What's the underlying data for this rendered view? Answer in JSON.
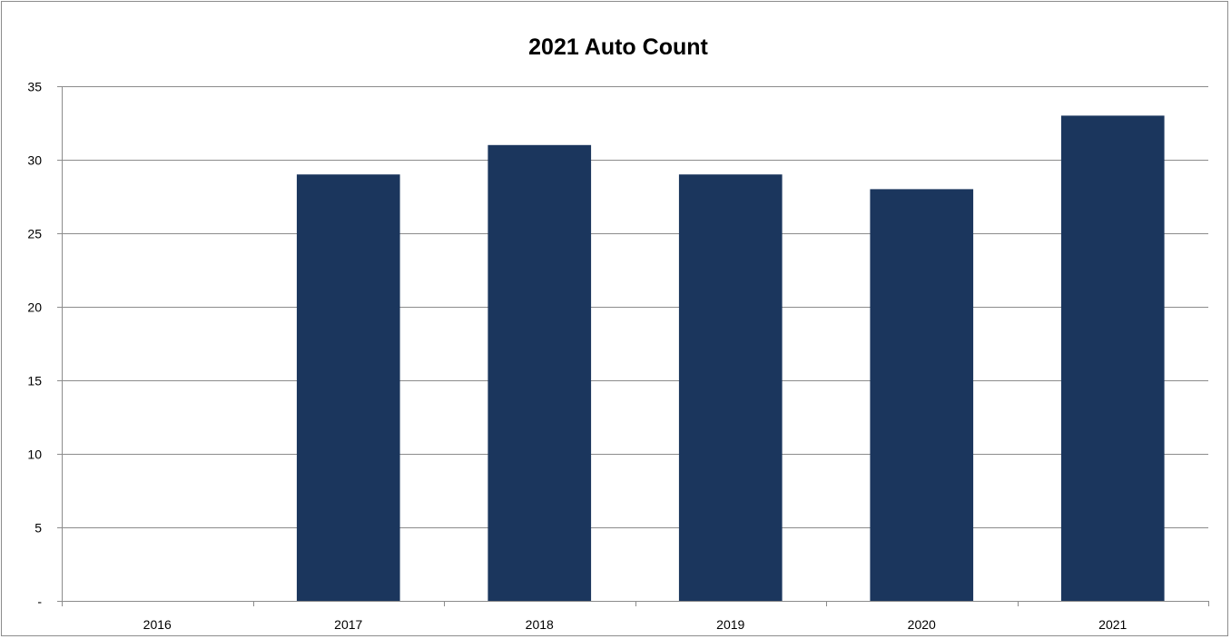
{
  "chart_data": {
    "type": "bar",
    "title": "2021 Auto Count",
    "xlabel": "",
    "ylabel": "",
    "categories": [
      "2016",
      "2017",
      "2018",
      "2019",
      "2020",
      "2021"
    ],
    "values": [
      0,
      29,
      31,
      29,
      28,
      33
    ],
    "ylim": [
      0,
      35
    ],
    "yticks": [
      0,
      5,
      10,
      15,
      20,
      25,
      30,
      35
    ],
    "ytick_labels": [
      "-",
      "5",
      "10",
      "15",
      "20",
      "25",
      "30",
      "35"
    ],
    "grid": "horizontal",
    "legend": "none",
    "bar_color": "#1b365d",
    "grid_color": "#8c8c8c"
  }
}
